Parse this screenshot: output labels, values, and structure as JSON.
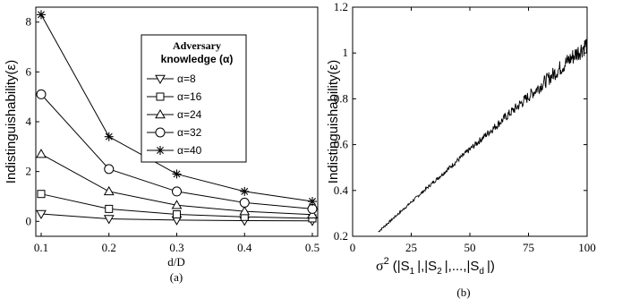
{
  "chart_data": [
    {
      "type": "line",
      "caption": "(a)",
      "xlabel": "d/D",
      "ylabel": "Indistinguishability(ε)",
      "xlim": [
        0.1,
        0.5
      ],
      "ylim": [
        -0.6,
        8.6
      ],
      "x": [
        0.1,
        0.2,
        0.3,
        0.4,
        0.5
      ],
      "xticks": [
        "0.1",
        "0.2",
        "0.3",
        "0.4",
        "0.5"
      ],
      "yticks": [
        0,
        2,
        4,
        6,
        8
      ],
      "legend_title_line1": "Adversary",
      "legend_title_line2": "knowledge (α)",
      "legend_position": "top-right",
      "grid": false,
      "series": [
        {
          "name": "α=8",
          "marker": "triangle-down",
          "values": [
            0.3,
            0.1,
            0.05,
            0.03,
            0.02
          ]
        },
        {
          "name": "α=16",
          "marker": "square",
          "values": [
            1.1,
            0.5,
            0.28,
            0.18,
            0.12
          ]
        },
        {
          "name": "α=24",
          "marker": "triangle-up",
          "values": [
            2.7,
            1.2,
            0.65,
            0.4,
            0.27
          ]
        },
        {
          "name": "α=32",
          "marker": "circle",
          "values": [
            5.1,
            2.1,
            1.2,
            0.75,
            0.5
          ]
        },
        {
          "name": "α=40",
          "marker": "asterisk",
          "values": [
            8.3,
            3.4,
            1.9,
            1.2,
            0.8
          ]
        }
      ]
    },
    {
      "type": "line",
      "caption": "(b)",
      "xlabel_base": "σ",
      "xlabel_sup": "2",
      "xlabel_args": "(|S",
      "xlabel_sub1": "1",
      "xlabel_mid1": "|,|S",
      "xlabel_sub2": "2",
      "xlabel_mid2": "|,...,|S",
      "xlabel_sub3": "d",
      "xlabel_end": "|)",
      "ylabel": "Indistinguishability(ε)",
      "xlim": [
        0,
        100
      ],
      "ylim": [
        0.2,
        1.2
      ],
      "xticks": [
        0,
        25,
        50,
        75,
        100
      ],
      "yticks": [
        "0.2",
        "0.4",
        "0.6",
        "0.8",
        "1",
        "1.2"
      ],
      "grid": false,
      "trend": {
        "x_start": 11,
        "x_end": 100,
        "y_start": 0.22,
        "y_end": 1.04
      },
      "noise_amplitude": [
        0.005,
        0.045
      ]
    }
  ]
}
